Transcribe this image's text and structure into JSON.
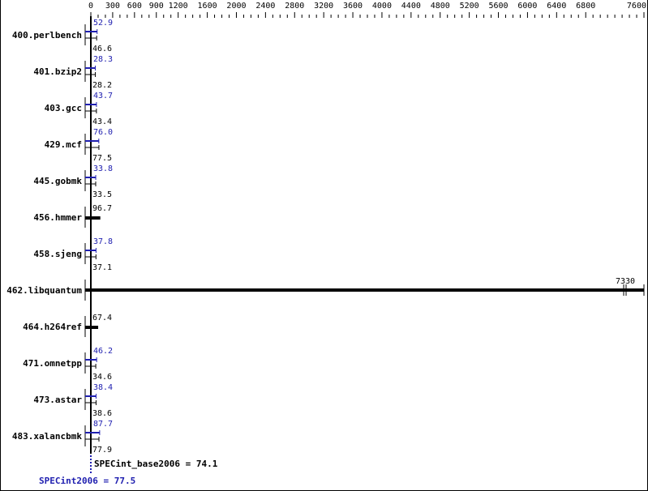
{
  "chart_data": {
    "type": "bar",
    "orientation": "horizontal",
    "title": "",
    "xlim": [
      0,
      7600
    ],
    "tick_labels": [
      0,
      300,
      600,
      900,
      1200,
      1600,
      2000,
      2400,
      2800,
      3200,
      3600,
      4000,
      4400,
      4800,
      5200,
      5600,
      6000,
      6400,
      6800,
      7600
    ],
    "categories": [
      "400.perlbench",
      "401.bzip2",
      "403.gcc",
      "429.mcf",
      "445.gobmk",
      "456.hmmer",
      "458.sjeng",
      "462.libquantum",
      "464.h264ref",
      "471.omnetpp",
      "473.astar",
      "483.xalancbmk"
    ],
    "series": [
      {
        "name": "SPECint2006",
        "color": "#2020b0",
        "values": [
          52.9,
          28.3,
          43.7,
          76.0,
          33.8,
          null,
          37.8,
          null,
          null,
          46.2,
          38.4,
          87.7
        ]
      },
      {
        "name": "SPECint_base2006",
        "color": "#000000",
        "values": [
          46.6,
          28.2,
          43.4,
          77.5,
          33.5,
          96.7,
          37.1,
          7330,
          67.4,
          34.6,
          38.6,
          77.9
        ]
      }
    ],
    "summary": {
      "base_label": "SPECint_base2006 = 74.1",
      "peak_label": "SPECint2006 = 77.5"
    },
    "broken_bar_label": "7330"
  }
}
